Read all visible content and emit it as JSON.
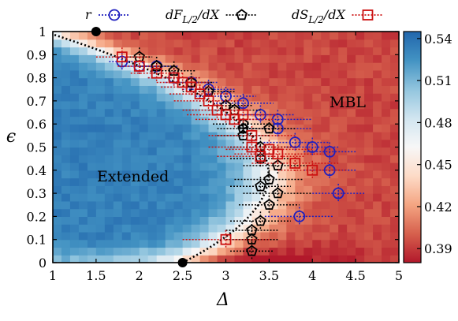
{
  "chart_data": {
    "type": "heatmap",
    "xlabel": "Δ",
    "ylabel": "ϵ",
    "xlim": [
      1,
      5
    ],
    "ylim": [
      0,
      1
    ],
    "x_ticks": [
      "1",
      "1.5",
      "2",
      "2.5",
      "3",
      "3.5",
      "4",
      "4.5",
      "5"
    ],
    "y_ticks": [
      "0",
      "0.1",
      "0.2",
      "0.3",
      "0.4",
      "0.5",
      "0.6",
      "0.7",
      "0.8",
      "0.9",
      "1"
    ],
    "colorbar": {
      "range": [
        0.38,
        0.545
      ],
      "ticks": [
        "0.54",
        "0.51",
        "0.48",
        "0.45",
        "0.42",
        "0.39"
      ],
      "colors": [
        "#b2182b",
        "#d6604d",
        "#f4a582",
        "#fddbc7",
        "#f7f7f7",
        "#d1e5f0",
        "#92c5de",
        "#4393c3",
        "#2166ac"
      ]
    },
    "annotations": [
      {
        "text": "Extended",
        "x": 1.5,
        "y": 0.35
      },
      {
        "text": "MBL",
        "x": 4.2,
        "y": 0.67
      }
    ],
    "boundary_points": [
      {
        "x": 1.5,
        "y": 1.0
      },
      {
        "x": 2.5,
        "y": 0.0
      }
    ],
    "series": [
      {
        "name": "r",
        "color": "#1f1fbf",
        "marker": "circle",
        "points": [
          {
            "x": 1.8,
            "y": 0.87,
            "xerr": 0.15
          },
          {
            "x": 2.0,
            "y": 0.85,
            "xerr": 0.2
          },
          {
            "x": 2.2,
            "y": 0.85,
            "xerr": 0.25
          },
          {
            "x": 2.4,
            "y": 0.8,
            "xerr": 0.3
          },
          {
            "x": 2.6,
            "y": 0.78,
            "xerr": 0.3
          },
          {
            "x": 2.8,
            "y": 0.75,
            "xerr": 0.3
          },
          {
            "x": 3.0,
            "y": 0.72,
            "xerr": 0.35
          },
          {
            "x": 3.2,
            "y": 0.69,
            "xerr": 0.35
          },
          {
            "x": 3.4,
            "y": 0.64,
            "xerr": 0.4
          },
          {
            "x": 3.6,
            "y": 0.62,
            "xerr": 0.4
          },
          {
            "x": 3.6,
            "y": 0.58,
            "xerr": 0.4
          },
          {
            "x": 3.8,
            "y": 0.52,
            "xerr": 0.4
          },
          {
            "x": 4.0,
            "y": 0.5,
            "xerr": 0.3
          },
          {
            "x": 4.2,
            "y": 0.48,
            "xerr": 0.3
          },
          {
            "x": 4.2,
            "y": 0.4,
            "xerr": 0.3
          },
          {
            "x": 4.3,
            "y": 0.3,
            "xerr": 0.3
          },
          {
            "x": 3.85,
            "y": 0.2,
            "xerr": 0.4
          }
        ]
      },
      {
        "name": "dF_{L/2}/dX",
        "color": "#000000",
        "marker": "pentagon",
        "points": [
          {
            "x": 2.0,
            "y": 0.89,
            "xerr": 0.15
          },
          {
            "x": 2.2,
            "y": 0.85,
            "xerr": 0.2
          },
          {
            "x": 2.4,
            "y": 0.83,
            "xerr": 0.25
          },
          {
            "x": 2.6,
            "y": 0.78,
            "xerr": 0.25
          },
          {
            "x": 2.8,
            "y": 0.74,
            "xerr": 0.3
          },
          {
            "x": 3.0,
            "y": 0.68,
            "xerr": 0.3
          },
          {
            "x": 3.1,
            "y": 0.66,
            "xerr": 0.3
          },
          {
            "x": 3.2,
            "y": 0.6,
            "xerr": 0.35
          },
          {
            "x": 3.2,
            "y": 0.55,
            "xerr": 0.3
          },
          {
            "x": 3.4,
            "y": 0.5,
            "xerr": 0.35
          },
          {
            "x": 3.4,
            "y": 0.45,
            "xerr": 0.35
          },
          {
            "x": 3.6,
            "y": 0.42,
            "xerr": 0.4
          },
          {
            "x": 3.5,
            "y": 0.36,
            "xerr": 0.4
          },
          {
            "x": 3.6,
            "y": 0.3,
            "xerr": 0.4
          },
          {
            "x": 3.5,
            "y": 0.25,
            "xerr": 0.35
          },
          {
            "x": 3.4,
            "y": 0.18,
            "xerr": 0.35
          },
          {
            "x": 3.3,
            "y": 0.14,
            "xerr": 0.3
          },
          {
            "x": 3.3,
            "y": 0.1,
            "xerr": 0.3
          },
          {
            "x": 3.3,
            "y": 0.05,
            "xerr": 0.25
          },
          {
            "x": 3.4,
            "y": 0.33,
            "xerr": 0.35
          },
          {
            "x": 3.2,
            "y": 0.58,
            "xerr": 0.3
          },
          {
            "x": 3.5,
            "y": 0.58,
            "xerr": 0.3
          }
        ]
      },
      {
        "name": "dS_{L/2}/dX",
        "color": "#cc1111",
        "marker": "square",
        "points": [
          {
            "x": 1.8,
            "y": 0.89,
            "xerr": 0.3
          },
          {
            "x": 2.0,
            "y": 0.85,
            "xerr": 0.25
          },
          {
            "x": 2.2,
            "y": 0.82,
            "xerr": 0.3
          },
          {
            "x": 2.4,
            "y": 0.8,
            "xerr": 0.3
          },
          {
            "x": 2.5,
            "y": 0.78,
            "xerr": 0.3
          },
          {
            "x": 2.6,
            "y": 0.76,
            "xerr": 0.35
          },
          {
            "x": 2.7,
            "y": 0.73,
            "xerr": 0.35
          },
          {
            "x": 2.8,
            "y": 0.7,
            "xerr": 0.4
          },
          {
            "x": 2.9,
            "y": 0.66,
            "xerr": 0.4
          },
          {
            "x": 3.0,
            "y": 0.64,
            "xerr": 0.45
          },
          {
            "x": 3.1,
            "y": 0.62,
            "xerr": 0.45
          },
          {
            "x": 3.3,
            "y": 0.55,
            "xerr": 0.5
          },
          {
            "x": 3.3,
            "y": 0.5,
            "xerr": 0.5
          },
          {
            "x": 3.5,
            "y": 0.49,
            "xerr": 0.5
          },
          {
            "x": 3.6,
            "y": 0.47,
            "xerr": 0.5
          },
          {
            "x": 3.8,
            "y": 0.43,
            "xerr": 0.5
          },
          {
            "x": 4.0,
            "y": 0.4,
            "xerr": 0.4
          },
          {
            "x": 3.0,
            "y": 0.1,
            "xerr": 0.5
          },
          {
            "x": 3.2,
            "y": 0.64,
            "xerr": 0.4
          },
          {
            "x": 3.4,
            "y": 0.46,
            "xerr": 0.5
          }
        ]
      }
    ],
    "grid": false,
    "legend_position": "top"
  }
}
